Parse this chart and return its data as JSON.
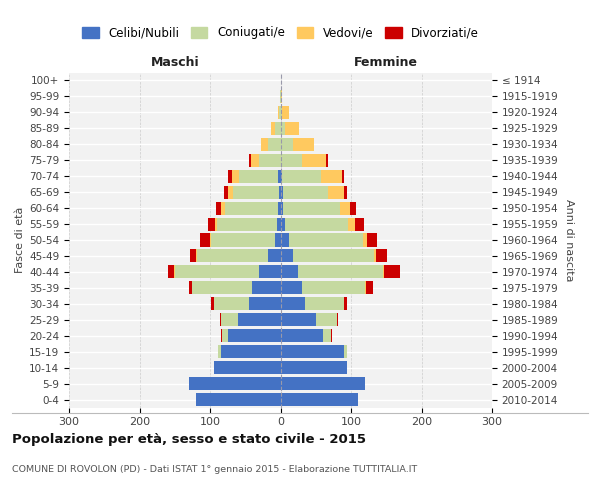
{
  "age_groups": [
    "0-4",
    "5-9",
    "10-14",
    "15-19",
    "20-24",
    "25-29",
    "30-34",
    "35-39",
    "40-44",
    "45-49",
    "50-54",
    "55-59",
    "60-64",
    "65-69",
    "70-74",
    "75-79",
    "80-84",
    "85-89",
    "90-94",
    "95-99",
    "100+"
  ],
  "birth_years": [
    "2010-2014",
    "2005-2009",
    "2000-2004",
    "1995-1999",
    "1990-1994",
    "1985-1989",
    "1980-1984",
    "1975-1979",
    "1970-1974",
    "1965-1969",
    "1960-1964",
    "1955-1959",
    "1950-1954",
    "1945-1949",
    "1940-1944",
    "1935-1939",
    "1930-1934",
    "1925-1929",
    "1920-1924",
    "1915-1919",
    "≤ 1914"
  ],
  "maschi_celibe": [
    120,
    130,
    95,
    85,
    75,
    60,
    45,
    40,
    30,
    18,
    8,
    5,
    4,
    2,
    4,
    0,
    0,
    0,
    0,
    0,
    0
  ],
  "maschi_coniugato": [
    0,
    0,
    0,
    3,
    8,
    25,
    50,
    85,
    120,
    100,
    90,
    85,
    75,
    65,
    55,
    30,
    18,
    8,
    2,
    1,
    0
  ],
  "maschi_vedovo": [
    0,
    0,
    0,
    0,
    0,
    0,
    0,
    0,
    1,
    2,
    2,
    3,
    5,
    8,
    10,
    12,
    10,
    5,
    2,
    0,
    0
  ],
  "maschi_divorziato": [
    0,
    0,
    0,
    0,
    1,
    1,
    3,
    5,
    8,
    8,
    14,
    10,
    8,
    5,
    5,
    2,
    0,
    0,
    0,
    0,
    0
  ],
  "femmine_celibe": [
    110,
    120,
    95,
    90,
    60,
    50,
    35,
    30,
    25,
    18,
    12,
    6,
    4,
    3,
    2,
    0,
    0,
    0,
    0,
    0,
    0
  ],
  "femmine_coniugata": [
    0,
    0,
    0,
    4,
    12,
    30,
    55,
    90,
    120,
    115,
    105,
    90,
    80,
    65,
    55,
    30,
    18,
    6,
    2,
    0,
    0
  ],
  "femmine_vedova": [
    0,
    0,
    0,
    0,
    0,
    0,
    0,
    1,
    2,
    3,
    5,
    10,
    15,
    22,
    30,
    35,
    30,
    20,
    10,
    2,
    1
  ],
  "femmine_divorziata": [
    0,
    0,
    0,
    0,
    1,
    2,
    5,
    10,
    22,
    15,
    15,
    12,
    8,
    4,
    3,
    2,
    0,
    0,
    0,
    0,
    0
  ],
  "color_celibe": "#4472c4",
  "color_coniugato": "#c5d9a0",
  "color_vedovo": "#ffc95f",
  "color_divorziato": "#cc0000",
  "title": "Popolazione per età, sesso e stato civile - 2015",
  "subtitle": "COMUNE DI ROVOLON (PD) - Dati ISTAT 1° gennaio 2015 - Elaborazione TUTTITALIA.IT",
  "xlabel_left": "Maschi",
  "xlabel_right": "Femmine",
  "ylabel_left": "Fasce di età",
  "ylabel_right": "Anni di nascita",
  "xlim": 300,
  "bg_color": "#f2f2f2",
  "legend_labels": [
    "Celibi/Nubili",
    "Coniugati/e",
    "Vedovi/e",
    "Divorziati/e"
  ]
}
